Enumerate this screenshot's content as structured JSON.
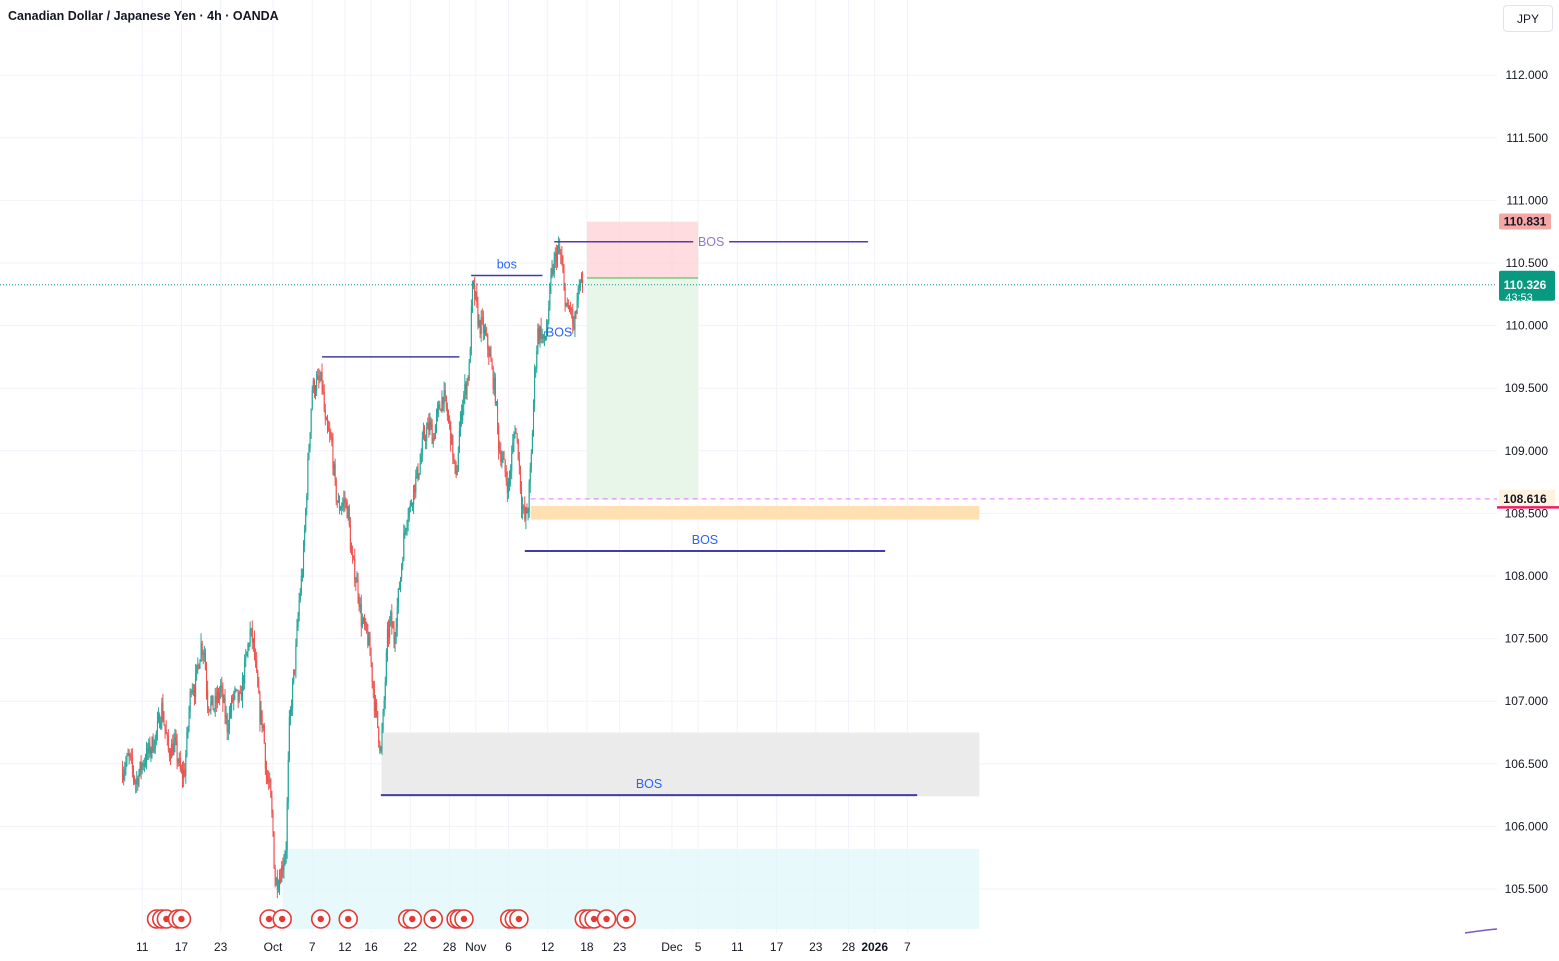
{
  "header": {
    "title": "Canadian Dollar / Japanese Yen · 4h · OANDA",
    "currency": "JPY"
  },
  "colors": {
    "up": "#26a69a",
    "down": "#ef5350",
    "bos_line": "#3f3da6",
    "bos_text": "#2962ff",
    "bos_top": "#9575cd",
    "stop_zone": "#ffcdd2",
    "target_zone": "#e8f5e9",
    "orange_zone": "#ffe0b2",
    "gray_zone": "#ebebeb",
    "cyan_zone": "#e0f7fa",
    "price_tag_green": "#089981",
    "price_tag_red": "#f7a6a6"
  },
  "chart_data": {
    "type": "candlestick",
    "symbol": "Canadian Dollar / Japanese Yen",
    "interval": "4h",
    "source": "OANDA",
    "ylim": [
      105.18,
      112.55
    ],
    "y_ticks": [
      105.5,
      106.0,
      106.5,
      107.0,
      107.5,
      108.0,
      108.5,
      109.0,
      109.5,
      110.0,
      110.5,
      111.0,
      111.5,
      112.0
    ],
    "y_tick_labels": [
      "105.500",
      "106.000",
      "106.500",
      "107.000",
      "107.500",
      "108.000",
      "108.500",
      "109.000",
      "109.500",
      "110.000",
      "110.500",
      "111.000",
      "111.500",
      "112.000"
    ],
    "x_labels": [
      {
        "day": -10,
        "label": "11"
      },
      {
        "day": -4,
        "label": "17"
      },
      {
        "day": 2,
        "label": "23"
      },
      {
        "day": 10,
        "label": "Oct"
      },
      {
        "day": 16,
        "label": "7"
      },
      {
        "day": 21,
        "label": "12"
      },
      {
        "day": 25,
        "label": "16"
      },
      {
        "day": 31,
        "label": "22"
      },
      {
        "day": 37,
        "label": "28"
      },
      {
        "day": 41,
        "label": "Nov"
      },
      {
        "day": 46,
        "label": "6"
      },
      {
        "day": 52,
        "label": "12"
      },
      {
        "day": 58,
        "label": "18"
      },
      {
        "day": 63,
        "label": "23"
      },
      {
        "day": 71,
        "label": "Dec"
      },
      {
        "day": 75,
        "label": "5"
      },
      {
        "day": 81,
        "label": "11"
      },
      {
        "day": 87,
        "label": "17"
      },
      {
        "day": 93,
        "label": "23"
      },
      {
        "day": 98,
        "label": "28"
      },
      {
        "day": 102,
        "label": "2026"
      },
      {
        "day": 107,
        "label": "7"
      }
    ],
    "price_path": [
      [
        -13.0,
        106.45
      ],
      [
        -12.0,
        106.55
      ],
      [
        -11.0,
        106.35
      ],
      [
        -10.0,
        106.5
      ],
      [
        -9.0,
        106.6
      ],
      [
        -8.0,
        106.7
      ],
      [
        -7.0,
        106.95
      ],
      [
        -6.0,
        106.6
      ],
      [
        -5.0,
        106.65
      ],
      [
        -4.0,
        106.4
      ],
      [
        -3.5,
        106.45
      ],
      [
        -3.0,
        106.8
      ],
      [
        -2.5,
        107.15
      ],
      [
        -2.0,
        107.1
      ],
      [
        -1.0,
        107.45
      ],
      [
        -0.5,
        107.4
      ],
      [
        0.0,
        107.0
      ],
      [
        1.0,
        106.95
      ],
      [
        2.0,
        107.1
      ],
      [
        3.0,
        106.8
      ],
      [
        4.0,
        107.05
      ],
      [
        5.0,
        107.0
      ],
      [
        5.5,
        107.2
      ],
      [
        6.5,
        107.55
      ],
      [
        7.0,
        107.45
      ],
      [
        8.0,
        106.9
      ],
      [
        8.5,
        106.8
      ],
      [
        9.0,
        106.4
      ],
      [
        9.5,
        106.3
      ],
      [
        10.0,
        105.95
      ],
      [
        10.3,
        105.55
      ],
      [
        11.0,
        105.6
      ],
      [
        11.5,
        105.7
      ],
      [
        12.0,
        105.85
      ],
      [
        12.5,
        106.8
      ],
      [
        13.5,
        107.4
      ],
      [
        14.0,
        107.8
      ],
      [
        14.6,
        108.1
      ],
      [
        15.5,
        109.05
      ],
      [
        16.0,
        109.5
      ],
      [
        17.0,
        109.55
      ],
      [
        17.5,
        109.55
      ],
      [
        18.0,
        109.2
      ],
      [
        19.0,
        109.05
      ],
      [
        19.5,
        108.7
      ],
      [
        20.0,
        108.55
      ],
      [
        21.0,
        108.6
      ],
      [
        21.5,
        108.5
      ],
      [
        22.0,
        108.15
      ],
      [
        23.0,
        107.9
      ],
      [
        23.5,
        107.65
      ],
      [
        24.5,
        107.5
      ],
      [
        25.0,
        107.3
      ],
      [
        25.5,
        107.0
      ],
      [
        26.5,
        106.6
      ],
      [
        27.0,
        107.0
      ],
      [
        27.5,
        107.5
      ],
      [
        28.0,
        107.65
      ],
      [
        28.5,
        107.5
      ],
      [
        29.5,
        108.0
      ],
      [
        30.0,
        108.3
      ],
      [
        30.5,
        108.5
      ],
      [
        31.0,
        108.55
      ],
      [
        31.5,
        108.7
      ],
      [
        32.5,
        108.9
      ],
      [
        33.0,
        109.1
      ],
      [
        34.0,
        109.2
      ],
      [
        34.5,
        109.1
      ],
      [
        35.0,
        109.25
      ],
      [
        35.5,
        109.35
      ],
      [
        36.0,
        109.45
      ],
      [
        37.0,
        109.2
      ],
      [
        38.0,
        108.75
      ],
      [
        38.5,
        109.15
      ],
      [
        39.0,
        109.4
      ],
      [
        40.0,
        109.65
      ],
      [
        40.5,
        110.3
      ],
      [
        41.0,
        110.2
      ],
      [
        41.5,
        110.0
      ],
      [
        42.0,
        110.0
      ],
      [
        43.0,
        109.8
      ],
      [
        44.0,
        109.45
      ],
      [
        44.5,
        109.05
      ],
      [
        45.0,
        108.95
      ],
      [
        46.0,
        108.7
      ],
      [
        47.0,
        109.2
      ],
      [
        47.5,
        109.0
      ],
      [
        48.0,
        108.6
      ],
      [
        48.5,
        108.45
      ],
      [
        49.0,
        108.55
      ],
      [
        49.5,
        108.95
      ],
      [
        50.0,
        109.6
      ],
      [
        50.5,
        109.95
      ],
      [
        51.0,
        109.95
      ],
      [
        51.5,
        109.85
      ],
      [
        52.0,
        110.05
      ],
      [
        52.5,
        110.35
      ],
      [
        53.0,
        110.5
      ],
      [
        53.5,
        110.6
      ],
      [
        54.0,
        110.55
      ],
      [
        54.5,
        110.3
      ],
      [
        55.0,
        110.1
      ],
      [
        55.5,
        110.15
      ],
      [
        56.0,
        109.95
      ],
      [
        56.5,
        110.2
      ],
      [
        57.0,
        110.3
      ],
      [
        57.4,
        110.33
      ]
    ],
    "bos_levels": [
      {
        "label": "",
        "price": 109.75,
        "from_day": 17.5,
        "to_day": 38.5
      },
      {
        "label": "bos",
        "price": 110.4,
        "from_day": 40.3,
        "to_day": 51.2
      },
      {
        "label": "BOS",
        "price": 110.67,
        "from_day": 53.0,
        "to_day": 101.0
      },
      {
        "label": "BOS",
        "price": 109.95,
        "from_day": 51.5,
        "to_day": 56.0
      },
      {
        "label": "BOS",
        "price": 108.2,
        "from_day": 48.5,
        "to_day": 103.6
      },
      {
        "label": "BOS",
        "price": 106.25,
        "from_day": 26.5,
        "to_day": 108.5
      }
    ],
    "zones": [
      {
        "name": "stop",
        "from_day": 58.0,
        "to_day": 75.0,
        "top": 110.83,
        "bottom": 110.38
      },
      {
        "name": "target",
        "from_day": 58.0,
        "to_day": 75.0,
        "top": 110.38,
        "bottom": 108.61
      },
      {
        "name": "supply",
        "from_day": 49.4,
        "to_day": 118.0,
        "top": 108.56,
        "bottom": 108.45
      },
      {
        "name": "gray",
        "from_day": 26.6,
        "to_day": 118.0,
        "top": 106.75,
        "bottom": 106.24
      },
      {
        "name": "cyan",
        "from_day": 11.5,
        "to_day": 118.0,
        "top": 105.82,
        "bottom": 105.18
      }
    ],
    "current_price": 110.326,
    "current_price_label": "110.326",
    "countdown": "43:53",
    "stop_price_label": "110.831",
    "stop_price": 110.831,
    "orange_level_label": "108.616",
    "orange_level": 108.616,
    "event_days": [
      -7.8,
      -7.0,
      -6.3,
      -4.6,
      -4.0,
      9.4,
      11.4,
      17.3,
      21.5,
      30.6,
      31.3,
      34.5,
      38.0,
      38.5,
      39.2,
      46.2,
      46.9,
      47.6,
      57.6,
      58.3,
      59.1,
      61.0,
      64.0
    ]
  }
}
